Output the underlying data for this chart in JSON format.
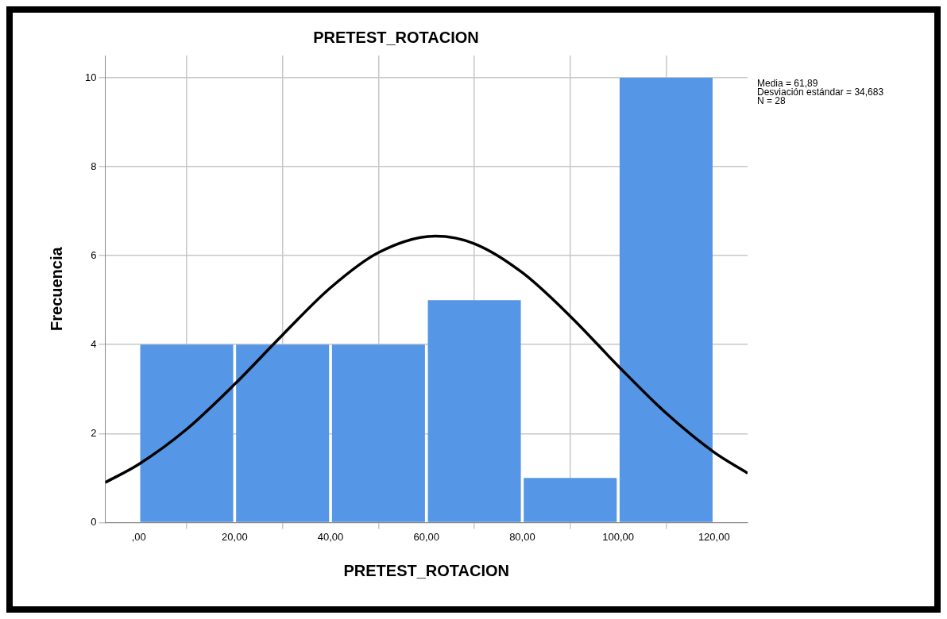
{
  "chart_data": {
    "type": "histogram",
    "title": "PRETEST_ROTACION",
    "xlabel": "PRETEST_ROTACION",
    "ylabel": "Frecuencia",
    "bins": [
      0,
      20,
      40,
      60,
      80,
      100,
      120
    ],
    "values": [
      4,
      4,
      4,
      5,
      1,
      10
    ],
    "color": "#5596e6",
    "series": [
      {
        "type": "line",
        "x": [
          -7,
          0,
          10,
          20,
          30,
          40,
          50,
          61.89,
          70,
          80,
          90,
          100,
          110,
          120,
          127
        ],
        "values": [
          0.9,
          1.31,
          2.1,
          3.11,
          4.22,
          5.28,
          6.07,
          6.44,
          6.27,
          5.62,
          4.64,
          3.52,
          2.46,
          1.58,
          1.11
        ],
        "color": "#000000"
      }
    ],
    "xlim": [
      -7,
      127
    ],
    "xticks": [
      {
        "value": 0,
        "label": ",00"
      },
      {
        "value": 20,
        "label": "20,00"
      },
      {
        "value": 40,
        "label": "40,00"
      },
      {
        "value": 60,
        "label": "60,00"
      },
      {
        "value": 80,
        "label": "80,00"
      },
      {
        "value": 100,
        "label": "100,00"
      },
      {
        "value": 120,
        "label": "120,00"
      }
    ],
    "ylim": [
      0,
      10.5
    ],
    "yticks": [
      0,
      2,
      4,
      6,
      8,
      10
    ],
    "grid": true,
    "legend": false,
    "marker": "none",
    "line_style": "solid",
    "annotations": [
      "Media = 61,89",
      "Desviación estándar = 34,683",
      "N = 28"
    ]
  }
}
